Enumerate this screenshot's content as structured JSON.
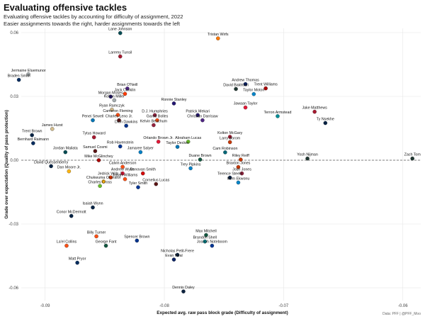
{
  "header": {
    "title": "Evaluating offensive tackles",
    "subtitle_1": "Evaluating offensive tackles by accounting for difficulty of assignment, 2022",
    "subtitle_2": "Easier assignments towards the right, harder assignments towards the left"
  },
  "caption": "Data: PFF | @PFF_Moo",
  "chart_data": {
    "type": "scatter",
    "title": "Evaluating offensive tackles",
    "xlabel": "Expected avg. raw pass block grade (Difficulty of assignment)",
    "ylabel": "Grade over expectation (Quality of pass protection)",
    "xlim": [
      -0.092,
      -0.0585
    ],
    "ylim": [
      -0.066,
      0.062
    ],
    "xticks": [
      -0.09,
      -0.08,
      -0.07,
      -0.06
    ],
    "yticks": [
      -0.06,
      -0.03,
      0.0,
      0.03,
      0.06
    ],
    "xtick_labels": [
      "-0.09",
      "-0.08",
      "-0.07",
      "-0.06"
    ],
    "ytick_labels": [
      "-0.06",
      "-0.03",
      "0.00",
      "0.03",
      "0.06"
    ],
    "reference_line": {
      "y": 0,
      "style": "dashed"
    },
    "grid": true,
    "points": [
      {
        "name": "Lane Johnson",
        "x": -0.0837,
        "y": 0.0598,
        "color": "#004C54"
      },
      {
        "name": "Tristan Wirfs",
        "x": -0.0755,
        "y": 0.0573,
        "color": "#FF7900"
      },
      {
        "name": "Laremy Tunsil",
        "x": -0.0837,
        "y": 0.0488,
        "color": "#A71930"
      },
      {
        "name": "Jermaine Eluemunor",
        "x": -0.0914,
        "y": 0.0404,
        "color": "#A5ACAF"
      },
      {
        "name": "Braden Smith",
        "x": -0.0922,
        "y": 0.0378,
        "color": "#002C5F"
      },
      {
        "name": "Andrew Thomas",
        "x": -0.0732,
        "y": 0.0358,
        "color": "#0B2265"
      },
      {
        "name": "David Bakhtiari",
        "x": -0.074,
        "y": 0.0335,
        "color": "#203731"
      },
      {
        "name": "Trent Williams",
        "x": -0.0715,
        "y": 0.0338,
        "color": "#AA0000"
      },
      {
        "name": "Brian O'Neill",
        "x": -0.0831,
        "y": 0.0337,
        "color": "#4F2683"
      },
      {
        "name": "Jack Conklin",
        "x": -0.0833,
        "y": 0.0312,
        "color": "#FF3C00"
      },
      {
        "name": "Morgan Moses",
        "x": -0.0845,
        "y": 0.0299,
        "color": "#241773"
      },
      {
        "name": "Taylor Moton",
        "x": -0.0725,
        "y": 0.0311,
        "color": "#0085CA"
      },
      {
        "name": "Kolton Miller",
        "x": -0.0842,
        "y": 0.0282,
        "color": "#A5ACAF"
      },
      {
        "name": "Ronnie Stanley",
        "x": -0.0792,
        "y": 0.0267,
        "color": "#241773"
      },
      {
        "name": "Jawaan Taylor",
        "x": -0.0732,
        "y": 0.0248,
        "color": "#E31837"
      },
      {
        "name": "Ryan Ramczyk",
        "x": -0.0844,
        "y": 0.0238,
        "color": "#D3BC8D"
      },
      {
        "name": "Jake Matthews",
        "x": -0.0674,
        "y": 0.0228,
        "color": "#A71930"
      },
      {
        "name": "Cameron Fleming",
        "x": -0.0839,
        "y": 0.0213,
        "color": "#FB4F14"
      },
      {
        "name": "D.J. Humphries",
        "x": -0.0808,
        "y": 0.0212,
        "color": "#97233F"
      },
      {
        "name": "Patrick Mekari",
        "x": -0.0772,
        "y": 0.0212,
        "color": "#241773"
      },
      {
        "name": "Terron Armstead",
        "x": -0.0705,
        "y": 0.0207,
        "color": "#008E97"
      },
      {
        "name": "Ty Nsekhe",
        "x": -0.0665,
        "y": 0.0175,
        "color": "#002244"
      },
      {
        "name": "Penei Sewell",
        "x": -0.086,
        "y": 0.0188,
        "color": "#0076B6"
      },
      {
        "name": "Charles Leno Jr.",
        "x": -0.0838,
        "y": 0.0188,
        "color": "#5A1414"
      },
      {
        "name": "Garett Bolles",
        "x": -0.0806,
        "y": 0.0188,
        "color": "#FB4F14"
      },
      {
        "name": "Christian Darrisaw",
        "x": -0.0768,
        "y": 0.0188,
        "color": "#4F2683"
      },
      {
        "name": "Dion Dawkins",
        "x": -0.0832,
        "y": 0.0162,
        "color": "#00338D"
      },
      {
        "name": "Kelvin Beachum",
        "x": -0.0809,
        "y": 0.0165,
        "color": "#97233F"
      },
      {
        "name": "James Hurst",
        "x": -0.0894,
        "y": 0.0147,
        "color": "#D3BC8D"
      },
      {
        "name": "Trent Brown",
        "x": -0.0911,
        "y": 0.0118,
        "color": "#002244"
      },
      {
        "name": "Tytus Howard",
        "x": -0.0859,
        "y": 0.0108,
        "color": "#A71930"
      },
      {
        "name": "Kolton McGary",
        "x": -0.0745,
        "y": 0.011,
        "color": "#A71930"
      },
      {
        "name": "Orlando Brown Jr.",
        "x": -0.0805,
        "y": 0.0087,
        "color": "#E31837"
      },
      {
        "name": "Abraham Lucas",
        "x": -0.078,
        "y": 0.0087,
        "color": "#69BE28"
      },
      {
        "name": "Larry Borom",
        "x": -0.0745,
        "y": 0.0085,
        "color": "#C83803"
      },
      {
        "name": "Bernhard Raimann",
        "x": -0.091,
        "y": 0.008,
        "color": "#002C5F"
      },
      {
        "name": "Rob Havenstein",
        "x": -0.0837,
        "y": 0.0065,
        "color": "#003594"
      },
      {
        "name": "Taylor Decker",
        "x": -0.0789,
        "y": 0.0063,
        "color": "#0076B6"
      },
      {
        "name": "Samuel Cosmi",
        "x": -0.0858,
        "y": 0.0043,
        "color": "#5A1414"
      },
      {
        "name": "Jordan Mailata",
        "x": -0.0883,
        "y": 0.0038,
        "color": "#004C54"
      },
      {
        "name": "Jamaree Salyer",
        "x": -0.082,
        "y": 0.0038,
        "color": "#0080C6"
      },
      {
        "name": "Cam Robinson",
        "x": -0.0749,
        "y": 0.0037,
        "color": "#006778"
      },
      {
        "name": "Yosh Nijman",
        "x": -0.068,
        "y": 0.0008,
        "color": "#203731"
      },
      {
        "name": "Zach Tom",
        "x": -0.0592,
        "y": 0.0008,
        "color": "#203731"
      },
      {
        "name": "Mike McGlinchey",
        "x": -0.0855,
        "y": 0.0,
        "color": "#AA0000"
      },
      {
        "name": "Duane Brown",
        "x": -0.077,
        "y": 0.0003,
        "color": "#125740"
      },
      {
        "name": "Riley Reiff",
        "x": -0.0736,
        "y": 0.0003,
        "color": "#C83803"
      },
      {
        "name": "Braxton Jones",
        "x": -0.0738,
        "y": -0.0032,
        "color": "#C83803"
      },
      {
        "name": "David Quessenberry",
        "x": -0.0895,
        "y": -0.0028,
        "color": "#002244"
      },
      {
        "name": "Calvin Anderson",
        "x": -0.0835,
        "y": -0.0031,
        "color": "#FB4F14"
      },
      {
        "name": "Trey Pipkins",
        "x": -0.0778,
        "y": -0.0038,
        "color": "#0080C6"
      },
      {
        "name": "Dan Moore Jr.",
        "x": -0.088,
        "y": -0.0052,
        "color": "#FFB612"
      },
      {
        "name": "Andrew Wylie",
        "x": -0.0835,
        "y": -0.0062,
        "color": "#E31837"
      },
      {
        "name": "Donovan Smith",
        "x": -0.0818,
        "y": -0.0062,
        "color": "#D50A0A"
      },
      {
        "name": "Josh Jones",
        "x": -0.0735,
        "y": -0.0062,
        "color": "#97233F"
      },
      {
        "name": "Jedrick Wills Jr.",
        "x": -0.0845,
        "y": -0.0081,
        "color": "#FF3C00"
      },
      {
        "name": "Jonah Williams",
        "x": -0.0833,
        "y": -0.0089,
        "color": "#FB4F14"
      },
      {
        "name": "Terence Steele",
        "x": -0.0745,
        "y": -0.0082,
        "color": "#041E42"
      },
      {
        "name": "Chukwuma Okorafor",
        "x": -0.0851,
        "y": -0.01,
        "color": "#FFB612"
      },
      {
        "name": "Ikem Ekwonu",
        "x": -0.0738,
        "y": -0.0105,
        "color": "#0085CA"
      },
      {
        "name": "Cornelius Lucas",
        "x": -0.0807,
        "y": -0.0112,
        "color": "#5A1414"
      },
      {
        "name": "Charles Cross",
        "x": -0.0854,
        "y": -0.0121,
        "color": "#69BE28"
      },
      {
        "name": "Tyler Smith",
        "x": -0.0822,
        "y": -0.0127,
        "color": "#003594"
      },
      {
        "name": "Isaiah Wynn",
        "x": -0.086,
        "y": -0.0222,
        "color": "#002244"
      },
      {
        "name": "Conor McDermott",
        "x": -0.0878,
        "y": -0.0262,
        "color": "#002244"
      },
      {
        "name": "Billy Turner",
        "x": -0.0857,
        "y": -0.0358,
        "color": "#FB4F14"
      },
      {
        "name": "Spencer Brown",
        "x": -0.0823,
        "y": -0.0378,
        "color": "#00338D"
      },
      {
        "name": "Max Mitchell",
        "x": -0.0765,
        "y": -0.0352,
        "color": "#125740"
      },
      {
        "name": "Brandon Shell",
        "x": -0.0766,
        "y": -0.0382,
        "color": "#008E97"
      },
      {
        "name": "Joseph Noteboom",
        "x": -0.076,
        "y": -0.0402,
        "color": "#003594"
      },
      {
        "name": "La'el Collins",
        "x": -0.0882,
        "y": -0.0402,
        "color": "#FB4F14"
      },
      {
        "name": "George Fant",
        "x": -0.0849,
        "y": -0.0402,
        "color": "#125740"
      },
      {
        "name": "Nicholas Petit-Frere",
        "x": -0.0789,
        "y": -0.0445,
        "color": "#0C2340"
      },
      {
        "name": "Matt Pryor",
        "x": -0.0873,
        "y": -0.0482,
        "color": "#002C5F"
      },
      {
        "name": "Evan Neal",
        "x": -0.0792,
        "y": -0.0467,
        "color": "#0B2265"
      },
      {
        "name": "Dennis Daley",
        "x": -0.0784,
        "y": -0.0617,
        "color": "#0C2340"
      }
    ]
  }
}
